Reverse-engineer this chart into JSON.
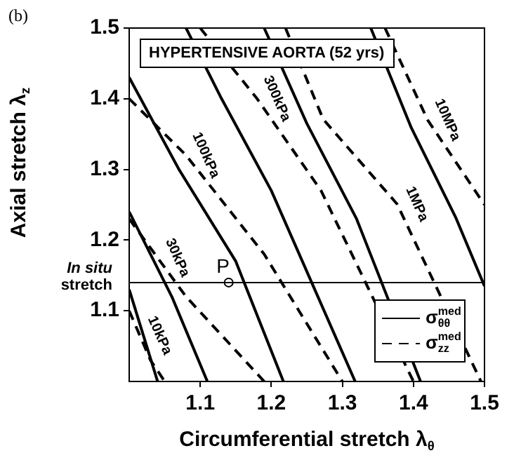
{
  "chart_data": {
    "type": "line",
    "title": "HYPERTENSIVE AORTA (52 yrs)",
    "xlabel": "Circumferential stretch λ$_{θ}$",
    "ylabel": "Axial stretch λ$_{z}$",
    "xlim": [
      1.0,
      1.5
    ],
    "ylim": [
      1.0,
      1.5
    ],
    "xticks": [
      1.1,
      1.2,
      1.3,
      1.4,
      1.5
    ],
    "yticks": [
      1.1,
      1.2,
      1.3,
      1.4,
      1.5
    ],
    "legend": "bottom right",
    "ref_lines": [
      {
        "axis": "y",
        "value": 1.14,
        "label": "In situ stretch",
        "color": "#000000"
      }
    ],
    "annotations": [
      "(b)",
      {
        "text": "10MPa",
        "x": 1.42,
        "y": 1.37
      },
      {
        "text": "1MPa",
        "x": 1.377,
        "y": 1.251
      },
      {
        "text": "300kPa",
        "x": 1.18,
        "y": 1.4
      },
      {
        "text": "100kPa",
        "x": 1.08,
        "y": 1.32
      },
      {
        "text": "30kPa",
        "x": 1.04,
        "y": 1.175
      },
      {
        "text": "10kPa",
        "x": 1.015,
        "y": 1.065
      },
      {
        "text": "P",
        "x": 1.14,
        "y": 1.14
      }
    ],
    "series": [
      {
        "name": "σ$_{θθ}$$^{med}$",
        "color": "#000000",
        "line_style": "solid",
        "x": [
          1.0,
          1.04
        ],
        "values": [
          1.13,
          1.0
        ]
      },
      {
        "name": "σ$_{zz}$$^{med}$",
        "color": "#000000",
        "line_style": "dashed",
        "x": [
          1.0,
          1.03,
          1.05
        ],
        "values": [
          1.1,
          1.03,
          1.0
        ]
      },
      {
        "color": "#000000",
        "line_style": "solid",
        "x": [
          1.0,
          1.06,
          1.11
        ],
        "values": [
          1.24,
          1.12,
          1.0
        ]
      },
      {
        "color": "#000000",
        "line_style": "dashed",
        "x": [
          1.0,
          1.08,
          1.19
        ],
        "values": [
          1.23,
          1.12,
          1.0
        ]
      },
      {
        "color": "#000000",
        "line_style": "solid",
        "x": [
          1.0,
          1.07,
          1.15,
          1.217
        ],
        "values": [
          1.43,
          1.3,
          1.17,
          1.0
        ]
      },
      {
        "color": "#000000",
        "line_style": "dashed",
        "x": [
          1.0,
          1.08,
          1.19,
          1.3
        ],
        "values": [
          1.4,
          1.32,
          1.18,
          1.0
        ]
      },
      {
        "color": "#000000",
        "line_style": "solid",
        "x": [
          1.08,
          1.13,
          1.2,
          1.318
        ],
        "values": [
          1.5,
          1.4,
          1.27,
          1.0
        ]
      },
      {
        "color": "#000000",
        "line_style": "dashed",
        "x": [
          1.1,
          1.18,
          1.27,
          1.4
        ],
        "values": [
          1.5,
          1.4,
          1.27,
          1.0
        ]
      },
      {
        "color": "#000000",
        "line_style": "solid",
        "x": [
          1.19,
          1.25,
          1.32,
          1.41
        ],
        "values": [
          1.5,
          1.365,
          1.23,
          1.0
        ]
      },
      {
        "color": "#000000",
        "line_style": "dashed",
        "x": [
          1.22,
          1.273,
          1.377,
          1.495
        ],
        "values": [
          1.5,
          1.371,
          1.251,
          1.0
        ]
      },
      {
        "color": "#000000",
        "line_style": "solid",
        "x": [
          1.34,
          1.397,
          1.46,
          1.5
        ],
        "values": [
          1.5,
          1.359,
          1.231,
          1.135
        ]
      },
      {
        "color": "#000000",
        "line_style": "dashed",
        "x": [
          1.36,
          1.42,
          1.5
        ],
        "values": [
          1.5,
          1.37,
          1.25
        ]
      },
      {
        "type": "scatter",
        "marker": "circle",
        "color": "#000000",
        "x": [
          1.14
        ],
        "values": [
          1.14
        ]
      }
    ]
  }
}
